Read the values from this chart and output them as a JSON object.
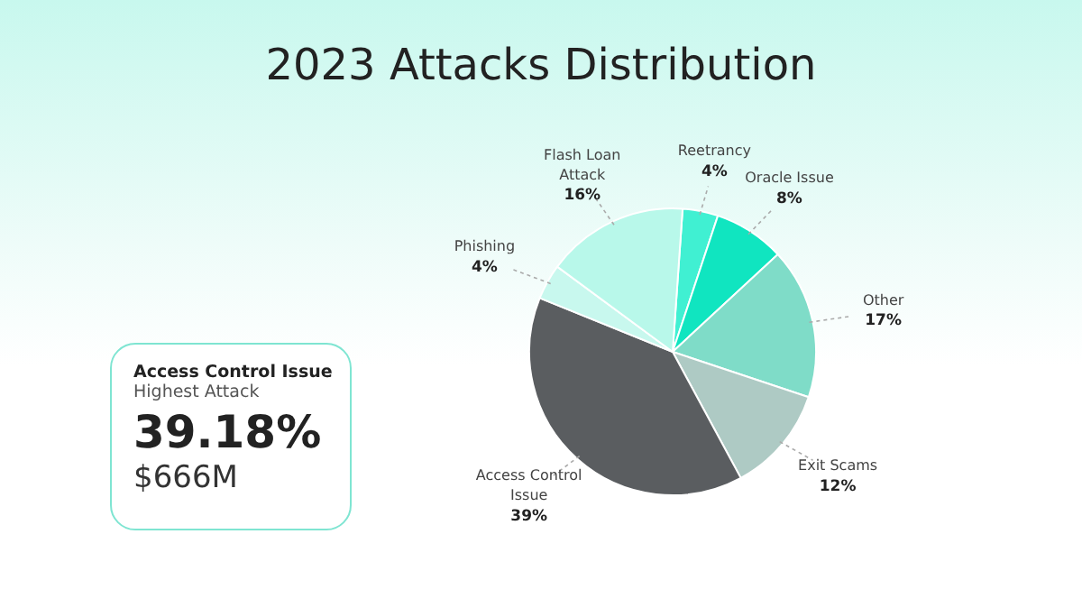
{
  "chart_data": {
    "type": "pie",
    "title": "2023 Attacks Distribution",
    "categories": [
      "Reetrancy",
      "Oracle Issue",
      "Other",
      "Exit Scams",
      "Access Control Issue",
      "Phishing",
      "Flash Loan Attack"
    ],
    "values": [
      4,
      8,
      17,
      12,
      39,
      4,
      16
    ],
    "value_labels": [
      "4%",
      "8%",
      "17%",
      "12%",
      "39%",
      "4%",
      "16%"
    ],
    "colors": [
      "#40f0d2",
      "#10e5c0",
      "#7fdcc8",
      "#aecac4",
      "#5a5d60",
      "#c8f8ee",
      "#b8f8ea"
    ],
    "annotations": [
      "Access Control Issue",
      "Highest Attack",
      "39.18%",
      "$666M"
    ],
    "legend": false
  }
}
